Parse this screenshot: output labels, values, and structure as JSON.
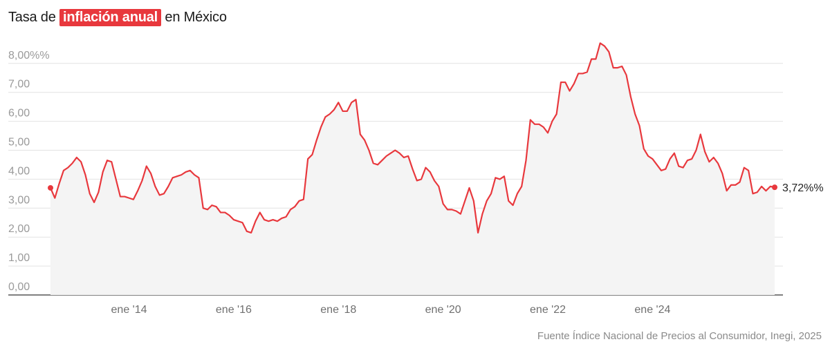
{
  "header": {
    "title_prefix": "Tasa de",
    "title_highlight": "inflación anual",
    "title_suffix": "en México"
  },
  "source": "Fuente Índice Nacional de Precios al Consumidor, Inegi, 2025",
  "colors": {
    "line": "#e8383d",
    "area": "#f4f4f4",
    "grid": "#e2e2e2",
    "highlight_bg": "#e8383d"
  },
  "chart_data": {
    "type": "line",
    "title": "Tasa de inflación anual en México",
    "x_start": "2012-07",
    "x_step": "month",
    "ylim": [
      0,
      8.8
    ],
    "y_ticks": [
      {
        "value": 0,
        "label": "0,00"
      },
      {
        "value": 1,
        "label": "1,00"
      },
      {
        "value": 2,
        "label": "2,00"
      },
      {
        "value": 3,
        "label": "3,00"
      },
      {
        "value": 4,
        "label": "4,00"
      },
      {
        "value": 5,
        "label": "5,00"
      },
      {
        "value": 6,
        "label": "6,00"
      },
      {
        "value": 7,
        "label": "7,00"
      },
      {
        "value": 8,
        "label": "8,00%%"
      }
    ],
    "x_ticks": [
      {
        "date": "2014-01",
        "label": "ene '14"
      },
      {
        "date": "2016-01",
        "label": "ene '16"
      },
      {
        "date": "2018-01",
        "label": "ene '18"
      },
      {
        "date": "2020-01",
        "label": "ene '20"
      },
      {
        "date": "2022-01",
        "label": "ene '22"
      },
      {
        "date": "2024-01",
        "label": "ene '24"
      }
    ],
    "grid": true,
    "end_label": "3,72%%",
    "series": [
      {
        "values": [
          3.7,
          3.35,
          3.85,
          4.3,
          4.4,
          4.55,
          4.75,
          4.6,
          4.15,
          3.5,
          3.2,
          3.55,
          4.25,
          4.65,
          4.6,
          4.0,
          3.4,
          3.4,
          3.35,
          3.3,
          3.6,
          3.95,
          4.45,
          4.2,
          3.75,
          3.45,
          3.5,
          3.75,
          4.05,
          4.1,
          4.15,
          4.25,
          4.3,
          4.15,
          4.05,
          3.0,
          2.95,
          3.1,
          3.05,
          2.85,
          2.85,
          2.75,
          2.6,
          2.55,
          2.5,
          2.2,
          2.15,
          2.55,
          2.85,
          2.6,
          2.55,
          2.6,
          2.55,
          2.65,
          2.7,
          2.95,
          3.05,
          3.25,
          3.3,
          4.7,
          4.85,
          5.35,
          5.8,
          6.15,
          6.25,
          6.4,
          6.65,
          6.35,
          6.35,
          6.65,
          6.75,
          5.55,
          5.35,
          5.0,
          4.55,
          4.5,
          4.65,
          4.8,
          4.9,
          5.0,
          4.9,
          4.75,
          4.8,
          4.35,
          3.95,
          4.0,
          4.4,
          4.25,
          3.95,
          3.75,
          3.15,
          2.95,
          2.95,
          2.9,
          2.8,
          3.25,
          3.7,
          3.25,
          2.15,
          2.8,
          3.25,
          3.5,
          4.05,
          4.0,
          4.1,
          3.25,
          3.1,
          3.5,
          3.75,
          4.65,
          6.05,
          5.9,
          5.9,
          5.8,
          5.6,
          6.0,
          6.25,
          7.35,
          7.35,
          7.05,
          7.3,
          7.65,
          7.65,
          7.7,
          8.15,
          8.15,
          8.7,
          8.6,
          8.4,
          7.85,
          7.85,
          7.9,
          7.6,
          6.85,
          6.25,
          5.85,
          5.05,
          4.8,
          4.7,
          4.5,
          4.3,
          4.35,
          4.7,
          4.9,
          4.45,
          4.4,
          4.65,
          4.7,
          5.0,
          5.55,
          4.95,
          4.6,
          4.75,
          4.55,
          4.2,
          3.6,
          3.8,
          3.8,
          3.9,
          4.4,
          4.3,
          3.5,
          3.55,
          3.75,
          3.6,
          3.75,
          3.72
        ]
      }
    ]
  }
}
